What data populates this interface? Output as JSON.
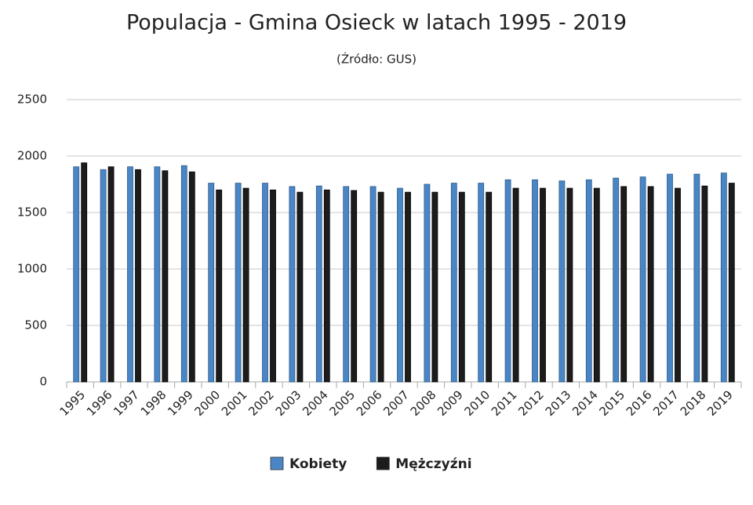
{
  "chart_data": {
    "type": "bar",
    "title": "Populacja - Gmina Osieck w latach 1995 - 2019",
    "subtitle": "(Źródło: GUS)",
    "categories": [
      "1995",
      "1996",
      "1997",
      "1998",
      "1999",
      "2000",
      "2001",
      "2002",
      "2003",
      "2004",
      "2005",
      "2006",
      "2007",
      "2008",
      "2009",
      "2010",
      "2011",
      "2012",
      "2013",
      "2014",
      "2015",
      "2016",
      "2017",
      "2018",
      "2019"
    ],
    "series": [
      {
        "name": "Kobiety",
        "color": "#4a86c5",
        "values": [
          1905,
          1880,
          1905,
          1905,
          1915,
          1760,
          1760,
          1760,
          1730,
          1735,
          1730,
          1730,
          1715,
          1750,
          1760,
          1760,
          1790,
          1790,
          1780,
          1790,
          1805,
          1815,
          1840,
          1840,
          1850
        ]
      },
      {
        "name": "Mężczyźni",
        "color": "#1c1c1c",
        "values": [
          1940,
          1905,
          1880,
          1870,
          1860,
          1700,
          1715,
          1700,
          1680,
          1700,
          1695,
          1680,
          1680,
          1680,
          1680,
          1680,
          1715,
          1715,
          1715,
          1715,
          1730,
          1730,
          1715,
          1735,
          1760
        ]
      }
    ],
    "ylim": [
      0,
      2500
    ],
    "yticks": [
      0,
      500,
      1000,
      1500,
      2000,
      2500
    ],
    "grid": true,
    "legend": "bottom"
  }
}
